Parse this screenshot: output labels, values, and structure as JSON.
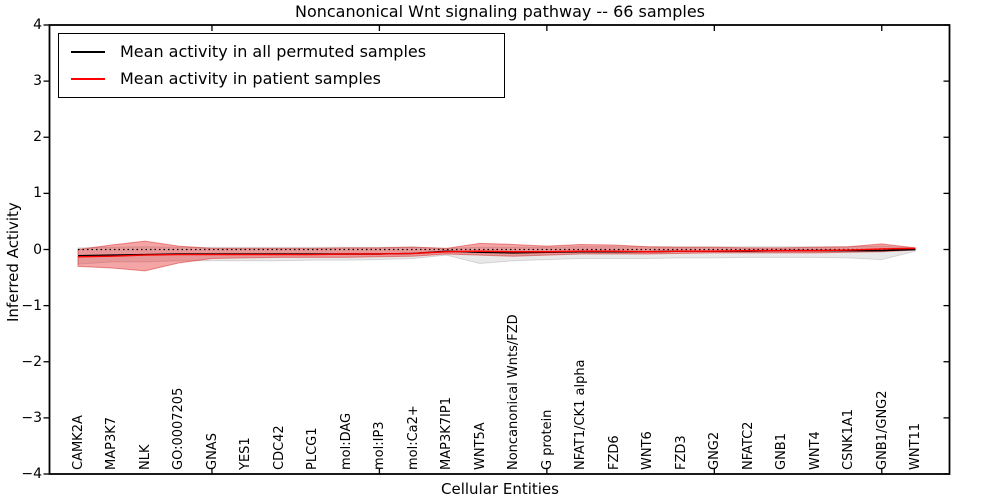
{
  "figure": {
    "title": "Noncanonical Wnt signaling pathway -- 66 samples",
    "background": "#ffffff"
  },
  "axes": {
    "ylabel": "Inferred Activity",
    "xlabel": "Cellular Entities",
    "ytick_labels": [
      "4",
      "3",
      "2",
      "1",
      "0",
      "−1",
      "−2",
      "−3",
      "−4"
    ],
    "ytick_values": [
      4,
      3,
      2,
      1,
      0,
      -1,
      -2,
      -3,
      -4
    ],
    "frame_color": "#000000"
  },
  "legend": {
    "entries": [
      {
        "label": "Mean activity in all permuted samples",
        "color": "#000000"
      },
      {
        "label": "Mean activity in patient samples",
        "color": "#ff0000"
      }
    ]
  },
  "chart_data": {
    "type": "line",
    "title": "Noncanonical Wnt signaling pathway -- 66 samples",
    "xlabel": "Cellular Entities",
    "ylabel": "Inferred Activity",
    "ylim": [
      -4,
      4
    ],
    "grid": false,
    "legend_position": "upper left",
    "categories": [
      "CAMK2A",
      "MAP3K7",
      "NLK",
      "GO:0007205",
      "GNAS",
      "YES1",
      "CDC42",
      "PLCG1",
      "mol:DAG",
      "mol:IP3",
      "mol:Ca2+",
      "MAP3K7IP1",
      "WNT5A",
      "Noncanonical Wnts/FZD",
      "G protein",
      "NFAT1/CK1 alpha",
      "FZD6",
      "WNT6",
      "FZD3",
      "GNG2",
      "NFATC2",
      "GNB1",
      "WNT4",
      "CSNK1A1",
      "GNB1/GNG2",
      "WNT11"
    ],
    "series": [
      {
        "name": "Mean activity in all permuted samples",
        "color": "#000000",
        "values": [
          -0.11,
          -0.1,
          -0.09,
          -0.08,
          -0.08,
          -0.08,
          -0.08,
          -0.08,
          -0.08,
          -0.08,
          -0.07,
          -0.03,
          -0.05,
          -0.06,
          -0.05,
          -0.04,
          -0.04,
          -0.04,
          -0.03,
          -0.03,
          -0.03,
          -0.02,
          -0.02,
          -0.02,
          -0.02,
          0.0
        ]
      },
      {
        "name": "Mean activity in patient samples",
        "color": "#ff0000",
        "values": [
          -0.13,
          -0.12,
          -0.1,
          -0.09,
          -0.09,
          -0.09,
          -0.09,
          -0.09,
          -0.08,
          -0.08,
          -0.07,
          -0.04,
          -0.03,
          -0.04,
          -0.04,
          -0.03,
          -0.03,
          -0.04,
          -0.03,
          -0.03,
          -0.02,
          -0.02,
          -0.02,
          -0.01,
          0.01,
          0.02
        ]
      }
    ],
    "bands": [
      {
        "name": "permuted-samples-range",
        "fill": "rgba(0,0,0,0.09)",
        "edge": "rgba(0,0,0,0.13)",
        "upper": [
          0.03,
          0.04,
          0.05,
          0.04,
          0.04,
          0.04,
          0.04,
          0.04,
          0.04,
          0.04,
          0.05,
          0.02,
          0.04,
          0.04,
          0.04,
          0.05,
          0.05,
          0.05,
          0.05,
          0.05,
          0.05,
          0.05,
          0.05,
          0.05,
          0.06,
          0.02
        ],
        "lower": [
          -0.26,
          -0.22,
          -0.22,
          -0.2,
          -0.2,
          -0.2,
          -0.2,
          -0.19,
          -0.19,
          -0.18,
          -0.16,
          -0.1,
          -0.25,
          -0.2,
          -0.18,
          -0.16,
          -0.16,
          -0.16,
          -0.15,
          -0.15,
          -0.14,
          -0.14,
          -0.14,
          -0.15,
          -0.18,
          -0.03
        ]
      },
      {
        "name": "patient-samples-range",
        "fill": "rgba(230,30,30,0.40)",
        "edge": "rgba(210,25,25,0.45)",
        "upper": [
          0.0,
          0.08,
          0.15,
          0.06,
          0.02,
          0.02,
          0.02,
          0.02,
          0.03,
          0.03,
          0.04,
          0.02,
          0.11,
          0.09,
          0.06,
          0.09,
          0.08,
          0.05,
          0.04,
          0.04,
          0.03,
          0.03,
          0.04,
          0.05,
          0.1,
          0.03
        ],
        "lower": [
          -0.3,
          -0.33,
          -0.38,
          -0.24,
          -0.16,
          -0.15,
          -0.14,
          -0.14,
          -0.14,
          -0.13,
          -0.12,
          -0.08,
          -0.1,
          -0.12,
          -0.1,
          -0.08,
          -0.08,
          -0.08,
          -0.07,
          -0.06,
          -0.06,
          -0.06,
          -0.06,
          -0.05,
          -0.04,
          -0.01
        ]
      }
    ],
    "zero_line": {
      "value": 0,
      "style": "dotted",
      "color": "#000000"
    },
    "top_tick_category_indices": [
      4,
      9,
      14,
      19,
      24
    ]
  }
}
